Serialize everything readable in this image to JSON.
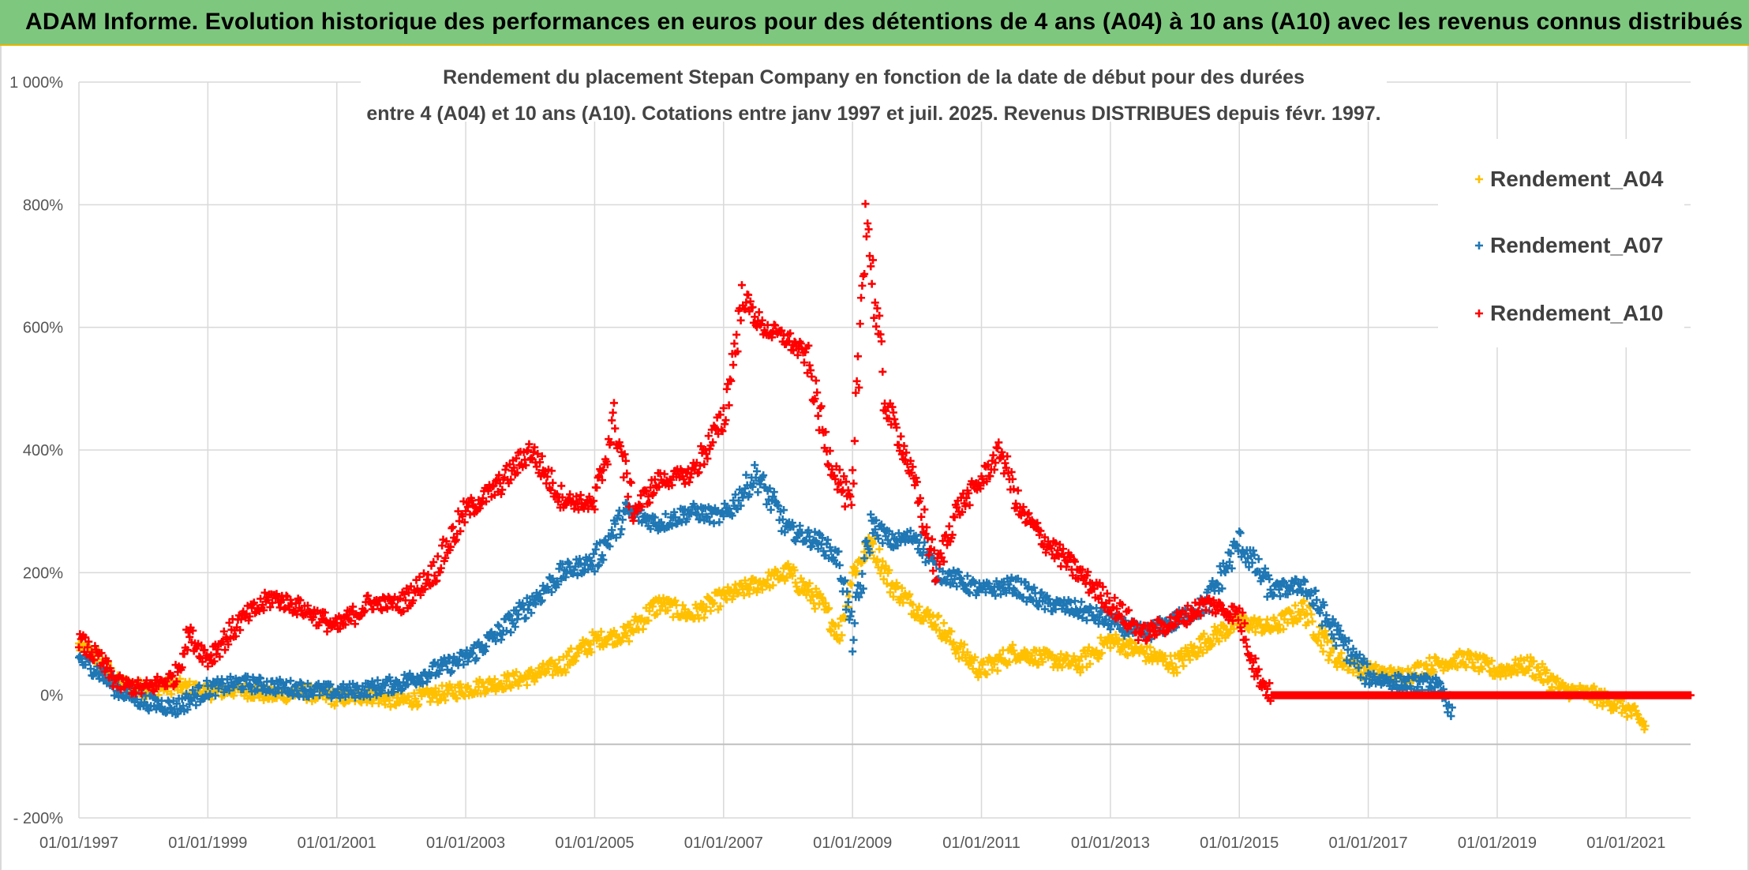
{
  "header": {
    "title": "ADAM Informe. Evolution historique des performances en euros pour des détentions de 4 ans (A04) à 10 ans (A10) avec les revenus connus distribués"
  },
  "colors": {
    "header_bg": "#7ec77f",
    "accent_border": "#e7b400",
    "series_A04": "#ffc000",
    "series_A07": "#1f77b4",
    "series_A10": "#ff0000"
  },
  "chart_data": {
    "type": "scatter",
    "title_line1": "Rendement du placement Stepan Company en fonction de la date de début pour des durées",
    "title_line2": "entre 4 (A04) et 10 ans (A10). Cotations entre janv 1997 et juil. 2025. Revenus DISTRIBUES depuis févr. 1997.",
    "xlabel": "",
    "ylabel": "",
    "ylim": [
      -200,
      1000
    ],
    "yticks": [
      -200,
      0,
      200,
      400,
      600,
      800,
      1000
    ],
    "ytick_labels": [
      "- 200%",
      "0%",
      "200%",
      "400%",
      "600%",
      "800%",
      "1 000%"
    ],
    "xlim": [
      1997.0,
      2022.0
    ],
    "xticks": [
      1997,
      1999,
      2001,
      2003,
      2005,
      2007,
      2009,
      2011,
      2013,
      2015,
      2017,
      2019,
      2021
    ],
    "xtick_labels": [
      "01/01/1997",
      "01/01/1999",
      "01/01/2001",
      "01/01/2003",
      "01/01/2005",
      "01/01/2007",
      "01/01/2009",
      "01/01/2011",
      "01/01/2013",
      "01/01/2015",
      "01/01/2017",
      "01/01/2019",
      "01/01/2021"
    ],
    "grid": true,
    "legend_position": "top-right",
    "marker": "+",
    "series": [
      {
        "name": "Rendement_A04",
        "color": "#ffc000",
        "x": [
          1997.0,
          1997.3,
          1997.6,
          1998.0,
          1998.5,
          1999.0,
          1999.5,
          2000.0,
          2000.5,
          2001.0,
          2001.5,
          2002.0,
          2002.5,
          2003.0,
          2003.5,
          2004.0,
          2004.5,
          2005.0,
          2005.5,
          2006.0,
          2006.5,
          2007.0,
          2007.5,
          2008.0,
          2008.5,
          2008.8,
          2009.0,
          2009.3,
          2009.6,
          2010.0,
          2010.3,
          2010.6,
          2011.0,
          2011.5,
          2012.0,
          2012.5,
          2013.0,
          2013.5,
          2014.0,
          2014.5,
          2015.0,
          2015.5,
          2016.0,
          2016.5,
          2017.0,
          2017.5,
          2018.0,
          2018.5,
          2019.0,
          2019.5,
          2020.0,
          2020.5,
          2021.0,
          2021.3
        ],
        "y": [
          80,
          60,
          20,
          10,
          15,
          5,
          10,
          0,
          5,
          -5,
          0,
          -10,
          0,
          10,
          20,
          30,
          50,
          90,
          100,
          150,
          130,
          160,
          180,
          200,
          150,
          100,
          200,
          250,
          180,
          140,
          120,
          80,
          40,
          70,
          60,
          50,
          90,
          70,
          50,
          90,
          120,
          110,
          140,
          60,
          40,
          30,
          50,
          60,
          40,
          50,
          10,
          0,
          -20,
          -50
        ]
      },
      {
        "name": "Rendement_A07",
        "color": "#1f77b4",
        "x": [
          1997.0,
          1997.3,
          1997.6,
          1998.0,
          1998.5,
          1999.0,
          1999.5,
          2000.0,
          2000.5,
          2001.0,
          2001.5,
          2002.0,
          2002.5,
          2003.0,
          2003.5,
          2004.0,
          2004.5,
          2005.0,
          2005.5,
          2006.0,
          2006.5,
          2007.0,
          2007.5,
          2008.0,
          2008.5,
          2008.8,
          2009.0,
          2009.3,
          2009.6,
          2010.0,
          2010.3,
          2010.6,
          2011.0,
          2011.5,
          2012.0,
          2012.5,
          2013.0,
          2013.5,
          2014.0,
          2014.5,
          2015.0,
          2015.5,
          2016.0,
          2016.5,
          2017.0,
          2017.5,
          2018.0,
          2018.3
        ],
        "y": [
          60,
          40,
          10,
          -10,
          -20,
          10,
          20,
          15,
          10,
          5,
          10,
          20,
          40,
          60,
          100,
          150,
          200,
          220,
          300,
          280,
          300,
          290,
          360,
          270,
          250,
          220,
          100,
          280,
          250,
          260,
          200,
          190,
          170,
          180,
          150,
          140,
          120,
          100,
          120,
          150,
          250,
          170,
          180,
          100,
          30,
          20,
          20,
          -20
        ]
      },
      {
        "name": "Rendement_A10",
        "color": "#ff0000",
        "x": [
          1997.0,
          1997.3,
          1997.6,
          1998.0,
          1998.5,
          1998.7,
          1999.0,
          1999.5,
          2000.0,
          2000.5,
          2001.0,
          2001.5,
          2002.0,
          2002.5,
          2003.0,
          2003.5,
          2004.0,
          2004.5,
          2005.0,
          2005.3,
          2005.6,
          2006.0,
          2006.5,
          2007.0,
          2007.3,
          2007.6,
          2008.0,
          2008.3,
          2008.6,
          2009.0,
          2009.2,
          2009.5,
          2009.8,
          2010.0,
          2010.3,
          2010.6,
          2011.0,
          2011.3,
          2011.6,
          2012.0,
          2012.5,
          2013.0,
          2013.5,
          2014.0,
          2014.5,
          2015.0,
          2015.3,
          2015.5,
          2016.0,
          2017.0,
          2018.0,
          2019.0,
          2020.0,
          2021.0,
          2022.0
        ],
        "y": [
          90,
          60,
          20,
          10,
          30,
          100,
          60,
          120,
          160,
          140,
          110,
          150,
          150,
          200,
          300,
          340,
          400,
          320,
          310,
          450,
          300,
          350,
          360,
          450,
          650,
          600,
          580,
          550,
          400,
          300,
          800,
          480,
          400,
          330,
          200,
          300,
          350,
          400,
          300,
          250,
          200,
          150,
          100,
          120,
          150,
          130,
          30,
          0,
          0,
          0,
          0,
          0,
          0,
          0,
          0
        ]
      }
    ]
  }
}
